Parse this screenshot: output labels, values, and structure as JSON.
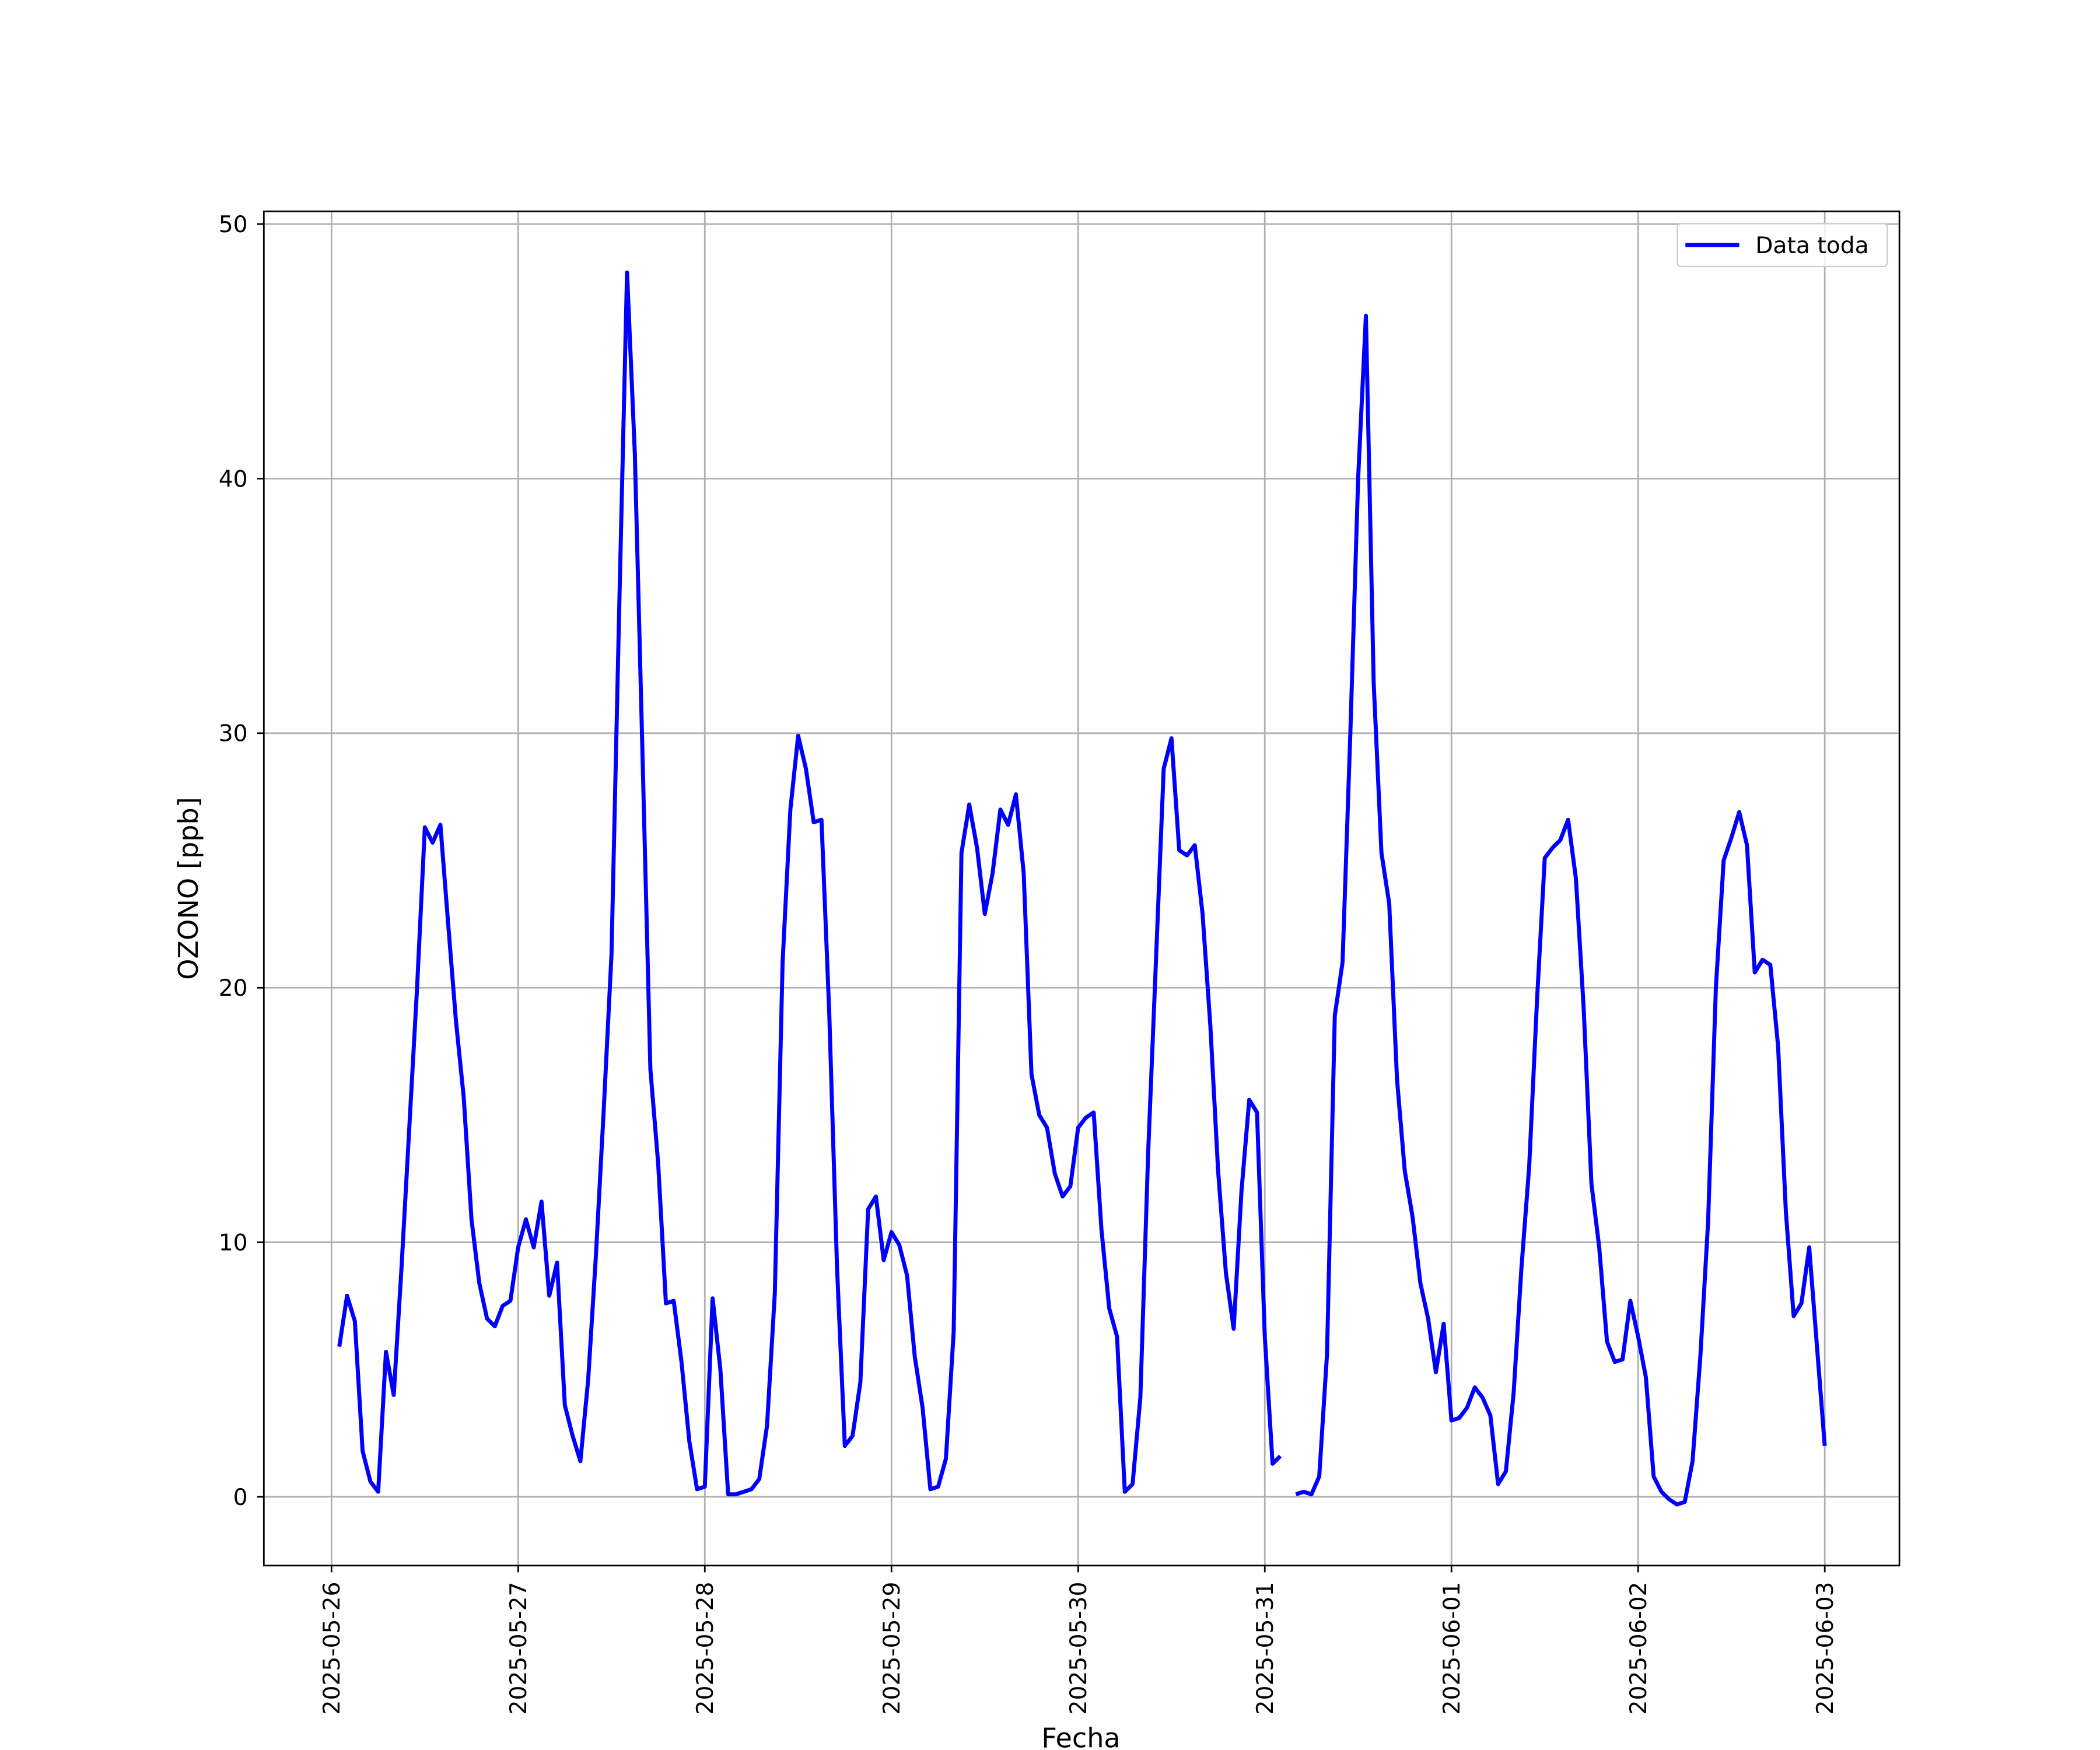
{
  "chart_data": {
    "type": "line",
    "x_label": "Fecha",
    "y_label": "OZONO [ppb]",
    "x": [
      1,
      2,
      3,
      4,
      5,
      6,
      7,
      8,
      9,
      10,
      11,
      12,
      13,
      14,
      15,
      16,
      17,
      18,
      19,
      20,
      21,
      22,
      23,
      24,
      25,
      26,
      27,
      28,
      29,
      30,
      31,
      32,
      33,
      34,
      35,
      36,
      37,
      38,
      39,
      40,
      41,
      42,
      43,
      44,
      45,
      46,
      47,
      48,
      49,
      50,
      51,
      52,
      53,
      54,
      55,
      56,
      57,
      58,
      59,
      60,
      61,
      62,
      63,
      64,
      65,
      66,
      67,
      68,
      69,
      70,
      71,
      72,
      73,
      74,
      75,
      76,
      77,
      78,
      79,
      80,
      81,
      82,
      83,
      84,
      85,
      86,
      87,
      88,
      89,
      90,
      91,
      92,
      93,
      94,
      95,
      96,
      97,
      98,
      99,
      100,
      101,
      102,
      103,
      104,
      105,
      106,
      107,
      108,
      109,
      110,
      111,
      112,
      113,
      114,
      115,
      116,
      117,
      118,
      119,
      120,
      121,
      122,
      123,
      124,
      125,
      126,
      127,
      128,
      129,
      130,
      131,
      132,
      133,
      134,
      135,
      136,
      137,
      138,
      139,
      140,
      141,
      142,
      143,
      144,
      145,
      146,
      147,
      148,
      149,
      150,
      151,
      152,
      153,
      154,
      155,
      156,
      157,
      158,
      159,
      160,
      161,
      162,
      163,
      164,
      165,
      166,
      167,
      168,
      169,
      170,
      171,
      172,
      173,
      174,
      175,
      176,
      177,
      178,
      179,
      180,
      181,
      182,
      183,
      184,
      185,
      186,
      187,
      188,
      189,
      190,
      191,
      192
    ],
    "series": [
      {
        "name": "Data toda",
        "color": "#0000ff",
        "values": [
          5.9,
          7.9,
          6.9,
          1.8,
          0.6,
          0.2,
          5.7,
          4.0,
          9.0,
          14.5,
          20.0,
          26.3,
          25.7,
          26.4,
          22.5,
          18.7,
          15.7,
          10.9,
          8.4,
          7.0,
          6.7,
          7.5,
          7.7,
          9.8,
          10.9,
          9.8,
          11.6,
          7.9,
          9.2,
          3.6,
          2.4,
          1.4,
          4.6,
          9.5,
          15.2,
          21.3,
          35.0,
          48.1,
          41.0,
          29.0,
          16.8,
          13.1,
          7.6,
          7.7,
          5.3,
          2.2,
          0.3,
          0.4,
          7.8,
          5.0,
          0.1,
          0.1,
          0.2,
          0.3,
          0.7,
          2.8,
          8.0,
          21.0,
          27.0,
          29.9,
          28.6,
          26.5,
          26.6,
          19.0,
          9.0,
          2.0,
          2.4,
          4.5,
          11.3,
          11.8,
          9.3,
          10.4,
          9.9,
          8.7,
          5.5,
          3.5,
          0.3,
          0.4,
          1.5,
          6.5,
          25.3,
          27.2,
          25.5,
          22.9,
          24.5,
          27.0,
          26.4,
          27.6,
          24.5,
          16.6,
          15.0,
          14.5,
          12.7,
          11.8,
          12.2,
          14.5,
          14.9,
          15.1,
          10.5,
          7.4,
          6.3,
          0.2,
          0.5,
          3.9,
          13.5,
          21.0,
          28.6,
          29.8,
          25.4,
          25.2,
          25.6,
          22.9,
          18.5,
          12.8,
          8.8,
          6.6,
          12.0,
          15.6,
          15.1,
          6.3,
          1.3,
          1.6,
          null,
          0.1,
          0.2,
          0.1,
          0.8,
          5.6,
          18.9,
          21.0,
          30.0,
          40.0,
          46.4,
          32.0,
          25.3,
          23.3,
          16.4,
          12.8,
          11.0,
          8.4,
          7.0,
          4.9,
          6.8,
          3.0,
          3.1,
          3.5,
          4.3,
          3.9,
          3.2,
          0.5,
          1.0,
          4.1,
          9.0,
          13.0,
          19.5,
          25.1,
          25.5,
          25.8,
          26.6,
          24.3,
          19.2,
          12.3,
          9.8,
          6.1,
          5.3,
          5.4,
          7.7,
          6.3,
          4.7,
          0.8,
          0.2,
          -0.1,
          -0.3,
          -0.2,
          1.4,
          5.5,
          10.8,
          20.0,
          25.0,
          25.9,
          26.9,
          25.6,
          20.6,
          21.1,
          20.9,
          17.7,
          11.2,
          7.1,
          7.6,
          9.8,
          5.9,
          2.0
        ]
      }
    ],
    "xlim": [
      -8.7,
      201.6
    ],
    "xticks": [
      {
        "value": 0,
        "label": "2025-05-26"
      },
      {
        "value": 24,
        "label": "2025-05-27"
      },
      {
        "value": 48,
        "label": "2025-05-28"
      },
      {
        "value": 72,
        "label": "2025-05-29"
      },
      {
        "value": 96,
        "label": "2025-05-30"
      },
      {
        "value": 120,
        "label": "2025-05-31"
      },
      {
        "value": 144,
        "label": "2025-06-01"
      },
      {
        "value": 168,
        "label": "2025-06-02"
      },
      {
        "value": 192,
        "label": "2025-06-03"
      }
    ],
    "ylim": [
      -2.7,
      50.5
    ],
    "yticks": [
      0,
      10,
      20,
      30,
      40,
      50
    ],
    "grid": true,
    "legend": "upper right"
  }
}
